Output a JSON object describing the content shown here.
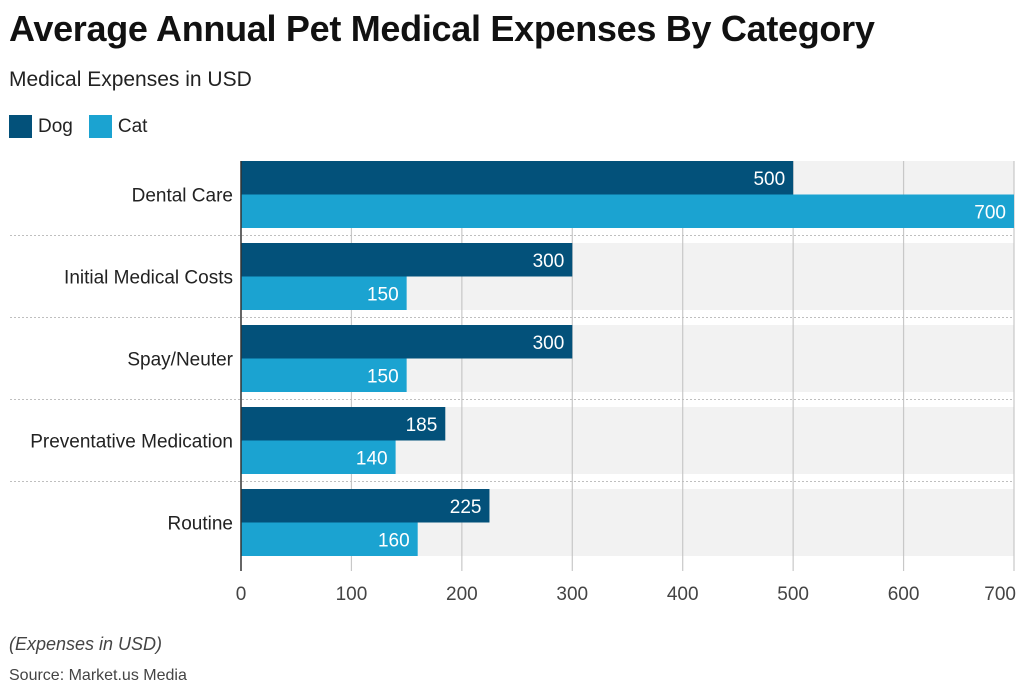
{
  "header": {
    "title": "Average Annual Pet Medical Expenses By Category",
    "subtitle": "Medical Expenses in USD"
  },
  "footer": {
    "note": "(Expenses in USD)",
    "source": "Source: Market.us Media"
  },
  "colors": {
    "dog": "#03517a",
    "cat": "#1ba3d1",
    "band": "#f2f2f2",
    "grid": "#c8c8c8",
    "separator": "#bfbfbf"
  },
  "chart_data": {
    "type": "bar",
    "orientation": "horizontal",
    "categories": [
      "Dental Care",
      "Initial Medical Costs",
      "Spay/Neuter",
      "Preventative Medication",
      "Routine"
    ],
    "series": [
      {
        "name": "Dog",
        "values": [
          500,
          300,
          300,
          185,
          225
        ]
      },
      {
        "name": "Cat",
        "values": [
          700,
          150,
          150,
          140,
          160
        ]
      }
    ],
    "xlim": [
      0,
      700
    ],
    "xticks": [
      0,
      100,
      200,
      300,
      400,
      500,
      600,
      700
    ],
    "legend_position": "top-left",
    "grid": true
  }
}
